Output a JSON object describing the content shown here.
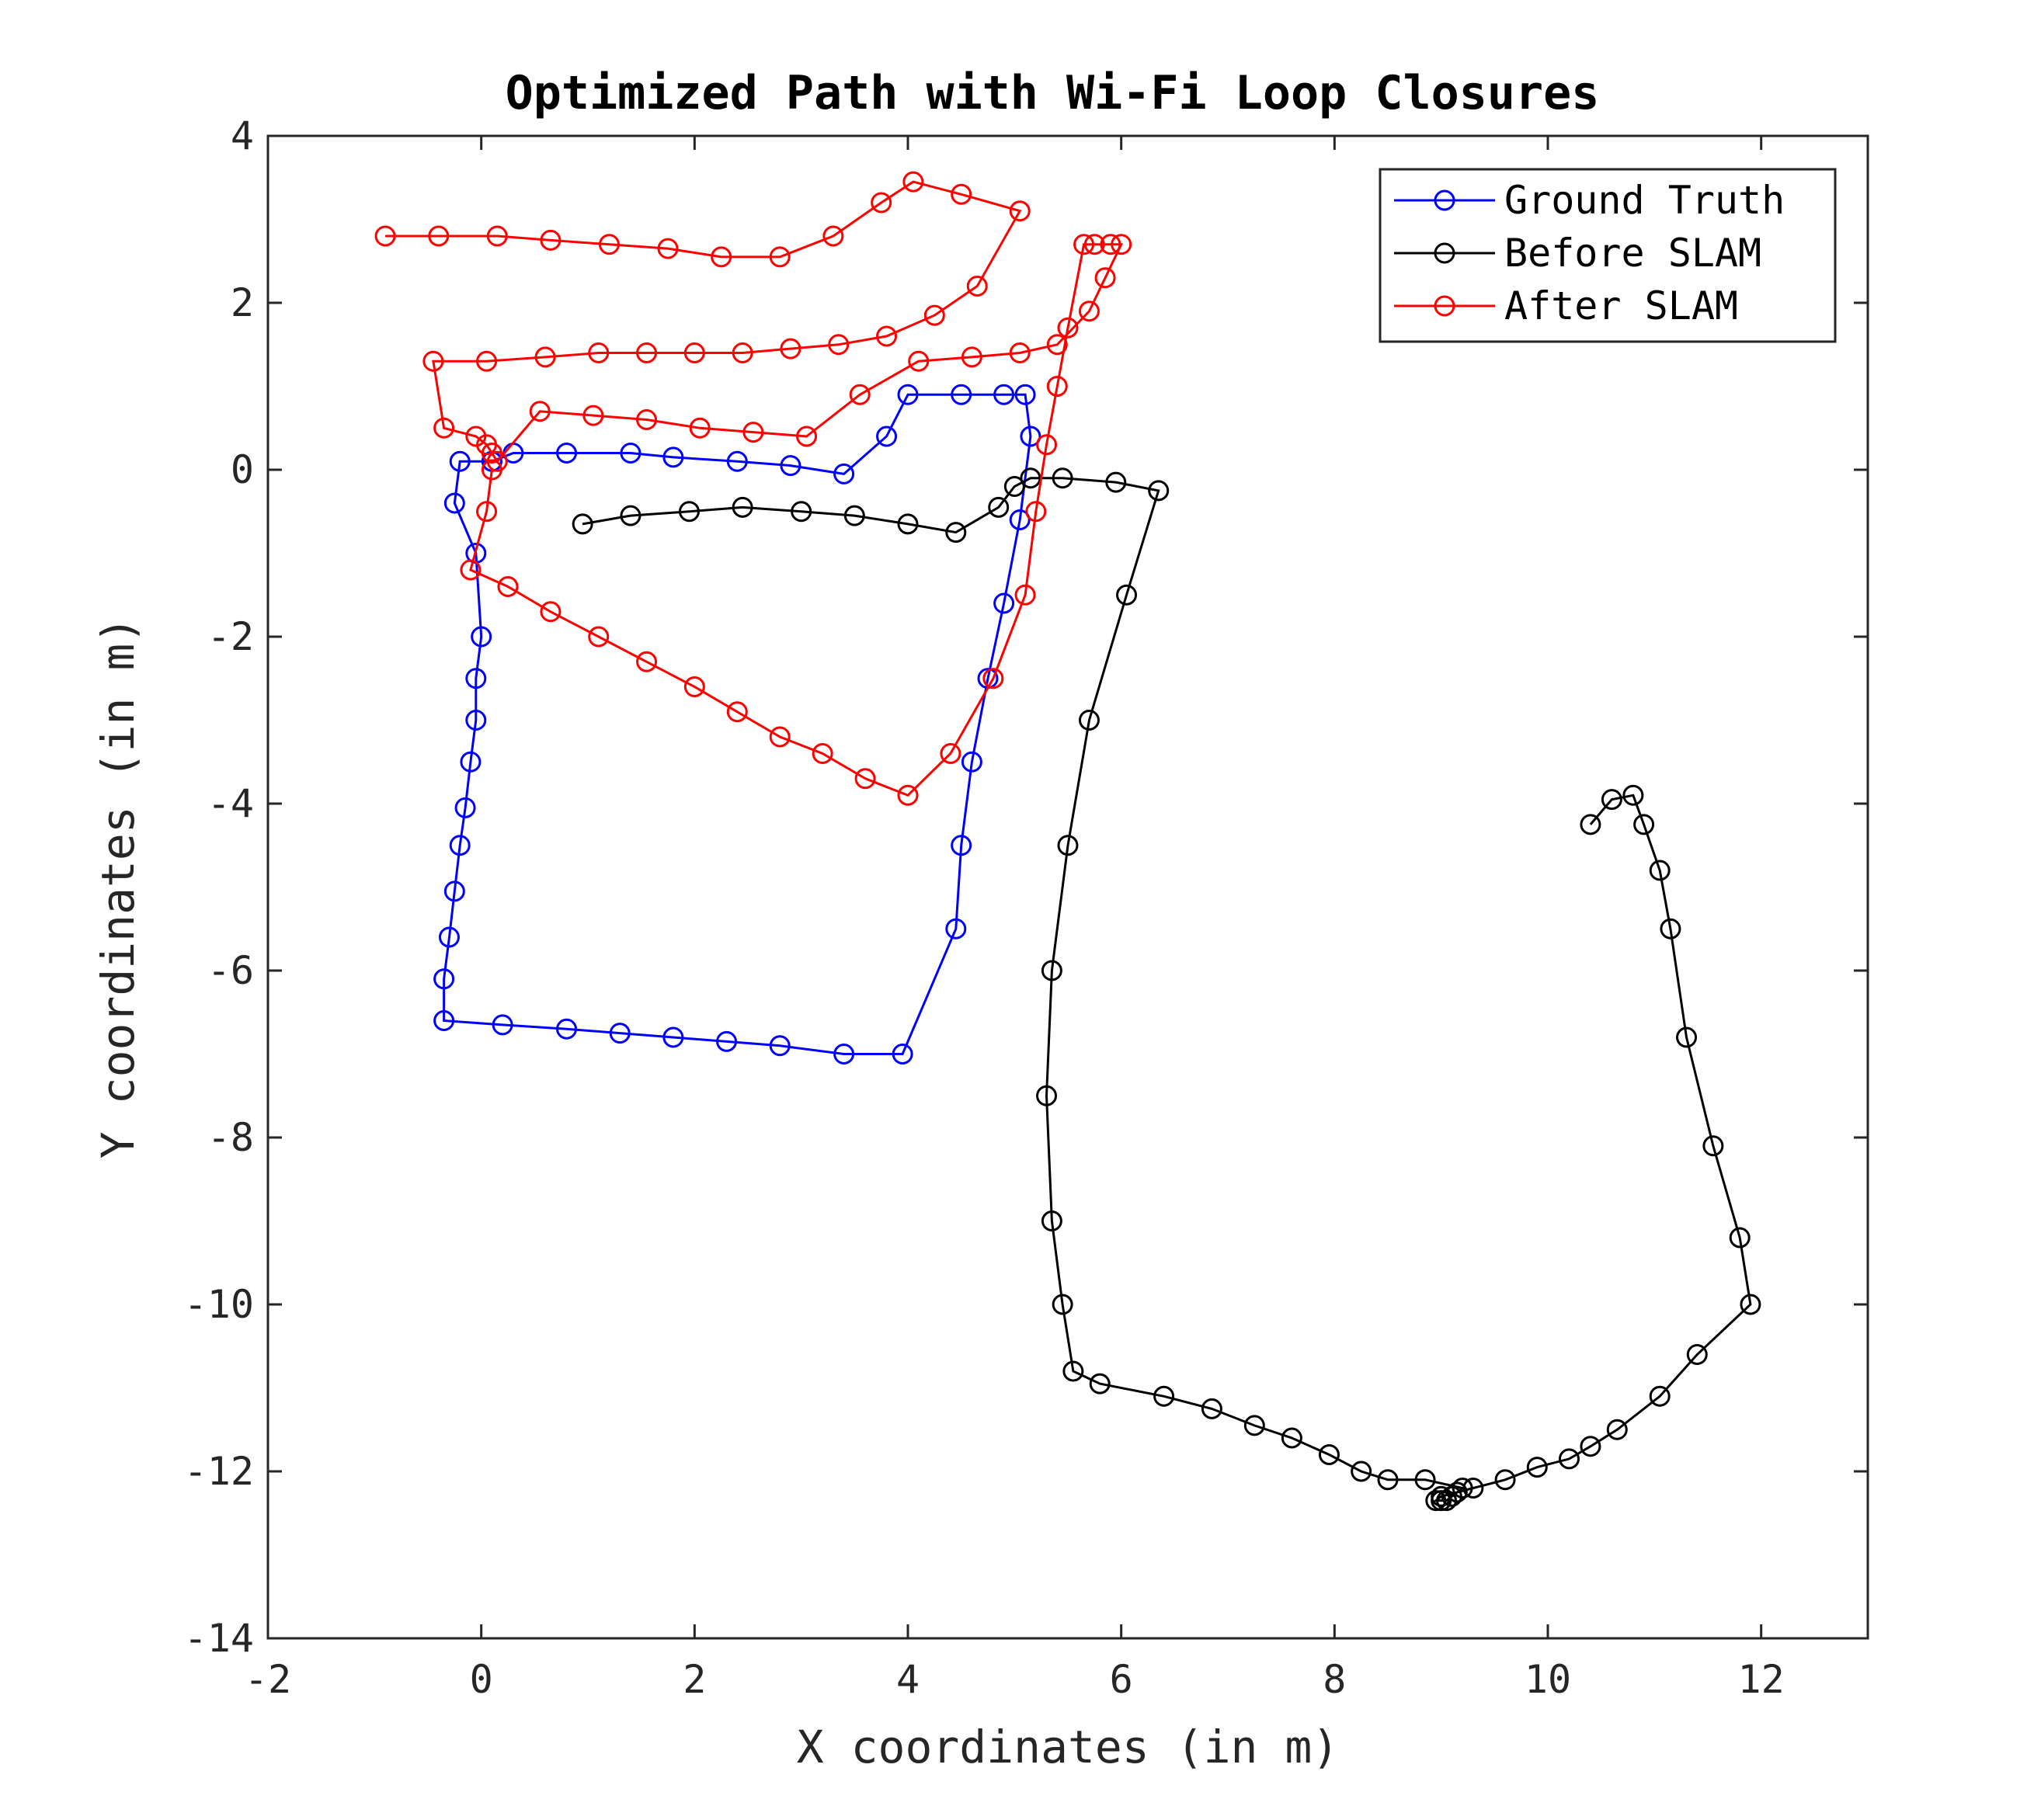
{
  "chart_data": {
    "type": "line",
    "title": "Optimized Path with Wi-Fi Loop Closures",
    "xlabel": "X coordinates (in m)",
    "ylabel": "Y coordinates (in m)",
    "xlim": [
      -2,
      13
    ],
    "ylim": [
      -14,
      4
    ],
    "xticks": [
      -2,
      0,
      2,
      4,
      6,
      8,
      10,
      12
    ],
    "yticks": [
      -14,
      -12,
      -10,
      -8,
      -6,
      -4,
      -2,
      0,
      2,
      4
    ],
    "grid": false,
    "legend_position": "top-right",
    "marker": "open-circle",
    "series": [
      {
        "name": "Ground Truth",
        "color": "#0000ff",
        "x": [
          0.1,
          0.3,
          0.8,
          1.4,
          1.8,
          2.4,
          2.9,
          3.4,
          3.8,
          4.0,
          4.5,
          4.9,
          5.1,
          5.15,
          5.05,
          4.9,
          4.75,
          4.6,
          4.5,
          4.45,
          3.95,
          3.4,
          2.8,
          2.3,
          1.8,
          1.3,
          0.8,
          0.2,
          -0.35,
          -0.35,
          -0.3,
          -0.25,
          -0.2,
          -0.15,
          -0.1,
          -0.05,
          -0.05,
          0.0,
          -0.05,
          -0.25,
          -0.2,
          0.1
        ],
        "y": [
          0.1,
          0.2,
          0.2,
          0.2,
          0.15,
          0.1,
          0.05,
          -0.05,
          0.4,
          0.9,
          0.9,
          0.9,
          0.9,
          0.4,
          -0.6,
          -1.6,
          -2.5,
          -3.5,
          -4.5,
          -5.5,
          -7.0,
          -7.0,
          -6.9,
          -6.85,
          -6.8,
          -6.75,
          -6.7,
          -6.65,
          -6.6,
          -6.1,
          -5.6,
          -5.05,
          -4.5,
          -4.05,
          -3.5,
          -3.0,
          -2.5,
          -2.0,
          -1.0,
          -0.4,
          0.1,
          0.1
        ]
      },
      {
        "name": "Before SLAM",
        "color": "#000000",
        "x": [
          0.95,
          1.4,
          1.95,
          2.45,
          3.0,
          3.5,
          4.0,
          4.45,
          4.85,
          5.0,
          5.15,
          5.45,
          5.95,
          6.35,
          6.05,
          5.7,
          5.5,
          5.35,
          5.3,
          5.35,
          5.45,
          5.55,
          5.8,
          6.4,
          6.85,
          7.25,
          7.6,
          7.95,
          8.25,
          8.5,
          8.85,
          9.2,
          9.15,
          9.1,
          9.05,
          9.0,
          8.95,
          9.0,
          9.3,
          9.6,
          9.9,
          10.2,
          10.4,
          10.65,
          11.05,
          11.4,
          11.9,
          11.8,
          11.55,
          11.3,
          11.15,
          11.05,
          10.9,
          10.8,
          10.6,
          10.4
        ],
        "y": [
          -0.65,
          -0.55,
          -0.5,
          -0.45,
          -0.5,
          -0.55,
          -0.65,
          -0.75,
          -0.45,
          -0.2,
          -0.1,
          -0.1,
          -0.15,
          -0.25,
          -1.5,
          -3.0,
          -4.5,
          -6.0,
          -7.5,
          -9.0,
          -10.0,
          -10.8,
          -10.95,
          -11.1,
          -11.25,
          -11.45,
          -11.6,
          -11.8,
          -12.0,
          -12.1,
          -12.1,
          -12.2,
          -12.25,
          -12.3,
          -12.35,
          -12.35,
          -12.35,
          -12.3,
          -12.2,
          -12.1,
          -11.95,
          -11.85,
          -11.7,
          -11.5,
          -11.1,
          -10.6,
          -10.0,
          -9.2,
          -8.1,
          -6.8,
          -5.5,
          -4.8,
          -4.25,
          -3.9,
          -3.95,
          -4.25
        ]
      },
      {
        "name": "After SLAM",
        "color": "#ff0000",
        "x": [
          -0.9,
          -0.4,
          0.15,
          0.65,
          1.2,
          1.75,
          2.25,
          2.8,
          3.3,
          3.75,
          4.05,
          4.5,
          5.05,
          4.65,
          4.25,
          3.8,
          3.35,
          2.9,
          2.45,
          2.0,
          1.55,
          1.1,
          0.6,
          0.05,
          -0.45,
          -0.35,
          -0.05,
          0.05,
          0.1,
          0.15,
          0.55,
          1.05,
          1.55,
          2.05,
          2.55,
          3.05,
          3.55,
          4.1,
          4.6,
          5.05,
          5.4,
          5.7,
          5.85,
          6.0,
          5.9,
          5.75,
          5.65,
          5.5,
          5.4,
          5.3,
          5.2,
          5.1,
          4.8,
          4.4,
          4.0,
          3.6,
          3.2,
          2.8,
          2.4,
          2.0,
          1.55,
          1.1,
          0.65,
          0.25,
          -0.1,
          0.05,
          0.1
        ],
        "y": [
          2.8,
          2.8,
          2.8,
          2.75,
          2.7,
          2.65,
          2.55,
          2.55,
          2.8,
          3.2,
          3.45,
          3.3,
          3.1,
          2.2,
          1.85,
          1.6,
          1.5,
          1.45,
          1.4,
          1.4,
          1.4,
          1.4,
          1.35,
          1.3,
          1.3,
          0.5,
          0.4,
          0.3,
          0.2,
          0.1,
          0.7,
          0.65,
          0.6,
          0.5,
          0.45,
          0.4,
          0.9,
          1.3,
          1.35,
          1.4,
          1.5,
          1.9,
          2.3,
          2.7,
          2.7,
          2.7,
          2.7,
          1.7,
          1.0,
          0.3,
          -0.5,
          -1.5,
          -2.5,
          -3.4,
          -3.9,
          -3.7,
          -3.4,
          -3.2,
          -2.9,
          -2.6,
          -2.3,
          -2.0,
          -1.7,
          -1.4,
          -1.2,
          -0.5,
          0.0
        ]
      }
    ]
  }
}
